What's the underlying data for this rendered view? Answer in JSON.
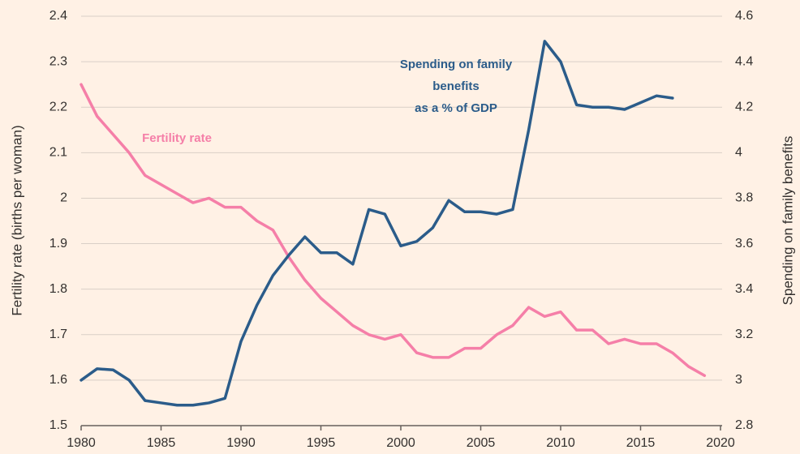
{
  "chart_data": {
    "type": "line",
    "x": [
      1980,
      1981,
      1982,
      1983,
      1984,
      1985,
      1986,
      1987,
      1988,
      1989,
      1990,
      1991,
      1992,
      1993,
      1994,
      1995,
      1996,
      1997,
      1998,
      1999,
      2000,
      2001,
      2002,
      2003,
      2004,
      2005,
      2006,
      2007,
      2008,
      2009,
      2010,
      2011,
      2012,
      2013,
      2014,
      2015,
      2016,
      2017,
      2018,
      2019
    ],
    "series": [
      {
        "name": "Fertility rate",
        "color": "#f57fa8",
        "axis": "y",
        "values": [
          2.25,
          2.18,
          2.14,
          2.1,
          2.05,
          2.03,
          2.01,
          1.99,
          2.0,
          1.98,
          1.98,
          1.95,
          1.93,
          1.87,
          1.82,
          1.78,
          1.75,
          1.72,
          1.7,
          1.69,
          1.7,
          1.66,
          1.65,
          1.65,
          1.67,
          1.67,
          1.7,
          1.72,
          1.76,
          1.74,
          1.75,
          1.71,
          1.71,
          1.68,
          1.69,
          1.68,
          1.68,
          1.66,
          1.63,
          1.61
        ]
      },
      {
        "name": "Spending on family benefits as a % of GDP",
        "color": "#2b5c8a",
        "axis": "y2",
        "values": [
          3.0,
          3.05,
          3.045,
          3.0,
          2.91,
          2.9,
          2.89,
          2.89,
          2.9,
          2.92,
          3.17,
          3.33,
          3.46,
          3.55,
          3.63,
          3.56,
          3.56,
          3.51,
          3.75,
          3.73,
          3.59,
          3.61,
          3.67,
          3.79,
          3.74,
          3.74,
          3.73,
          3.75,
          4.1,
          4.49,
          4.4,
          4.21,
          4.2,
          4.2,
          4.19,
          4.22,
          4.25,
          4.24,
          null,
          null
        ]
      }
    ],
    "annotations": [
      {
        "lines": [
          "Fertility rate"
        ],
        "color": "#f57fa8"
      },
      {
        "lines": [
          "Spending on family",
          "benefits",
          "as a % of GDP"
        ],
        "color": "#2b5c8a"
      }
    ],
    "y_label": "Fertility rate (births per woman)",
    "y2_label": "Spending on family benefits",
    "xlim": [
      1980,
      2020
    ],
    "xticks": [
      1980,
      1985,
      1990,
      1995,
      2000,
      2005,
      2010,
      2015,
      2020
    ],
    "ylim": [
      1.5,
      2.4
    ],
    "yticks": [
      1.5,
      1.6,
      1.7,
      1.8,
      1.9,
      2,
      2.1,
      2.2,
      2.3,
      2.4
    ],
    "y2lim": [
      2.8,
      4.6
    ],
    "y2ticks": [
      2.8,
      3,
      3.2,
      3.4,
      3.6,
      3.8,
      4,
      4.2,
      4.4,
      4.6
    ],
    "grid": true
  }
}
